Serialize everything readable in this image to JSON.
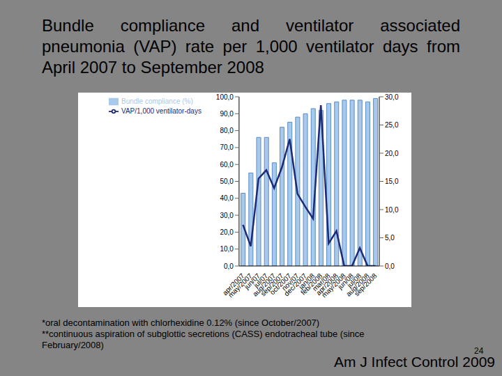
{
  "title": "Bundle compliance and ventilator associated pneumonia (VAP) rate per 1,000 ventilator days from April 2007 to September 2008",
  "footnotes": [
    "*oral decontamination with chlorhexidine 0.12% (since October/2007)",
    "**continuous aspiration of subglottic secretions (CASS) endotracheal tube (since February/2008)"
  ],
  "page_number": "24",
  "source": "Am J Infect Control 2009",
  "chart_data": {
    "type": "bar",
    "categories": [
      "apr/2007",
      "may/2007",
      "jun/07",
      "jul/07",
      "aug/2007",
      "sep/2007",
      "oct/2007",
      "nov/07",
      "dec/2007",
      "jan/08",
      "feb/2008",
      "mar/08",
      "apr/2008",
      "may/2008",
      "jun/08",
      "jul/08",
      "aug/2008",
      "sep/2008"
    ],
    "series": [
      {
        "name": "Bundle compliance (%)",
        "type": "bar",
        "color": "#a7c9ec",
        "values": [
          43,
          55,
          76,
          76,
          61,
          82,
          85,
          88,
          90,
          93,
          92,
          96,
          97,
          98,
          98,
          98,
          97,
          99
        ]
      },
      {
        "name": "VAP/1,000 ventilator-days",
        "type": "line",
        "axis": "y2",
        "color": "#1c2a78",
        "marker": "none",
        "line_style": "solid",
        "values": [
          7.3,
          3.5,
          15.5,
          17,
          13.8,
          17.5,
          22.5,
          12.8,
          10.5,
          8.4,
          28.5,
          4,
          6.2,
          0,
          0,
          3.2,
          0,
          0
        ]
      }
    ],
    "ylim": [
      0,
      100
    ],
    "yticks": [
      {
        "value": 0,
        "label": "0,0"
      },
      {
        "value": 10,
        "label": "10,0"
      },
      {
        "value": 20,
        "label": "20,0"
      },
      {
        "value": 30,
        "label": "30,0"
      },
      {
        "value": 40,
        "label": "40,0"
      },
      {
        "value": 50,
        "label": "50,0"
      },
      {
        "value": 60,
        "label": "60,0"
      },
      {
        "value": 70,
        "label": "70,0"
      },
      {
        "value": 80,
        "label": "80,0"
      },
      {
        "value": 90,
        "label": "90,0"
      },
      {
        "value": 100,
        "label": "100,0"
      }
    ],
    "y2lim": [
      0,
      30
    ],
    "y2ticks": [
      {
        "value": 0,
        "label": "0,0"
      },
      {
        "value": 5,
        "label": "5,0"
      },
      {
        "value": 10,
        "label": "10,0"
      },
      {
        "value": 15,
        "label": "15,0"
      },
      {
        "value": 20,
        "label": "20,0"
      },
      {
        "value": 25,
        "label": "25,0"
      },
      {
        "value": 30,
        "label": "30,0"
      }
    ],
    "legend": "upper left"
  }
}
